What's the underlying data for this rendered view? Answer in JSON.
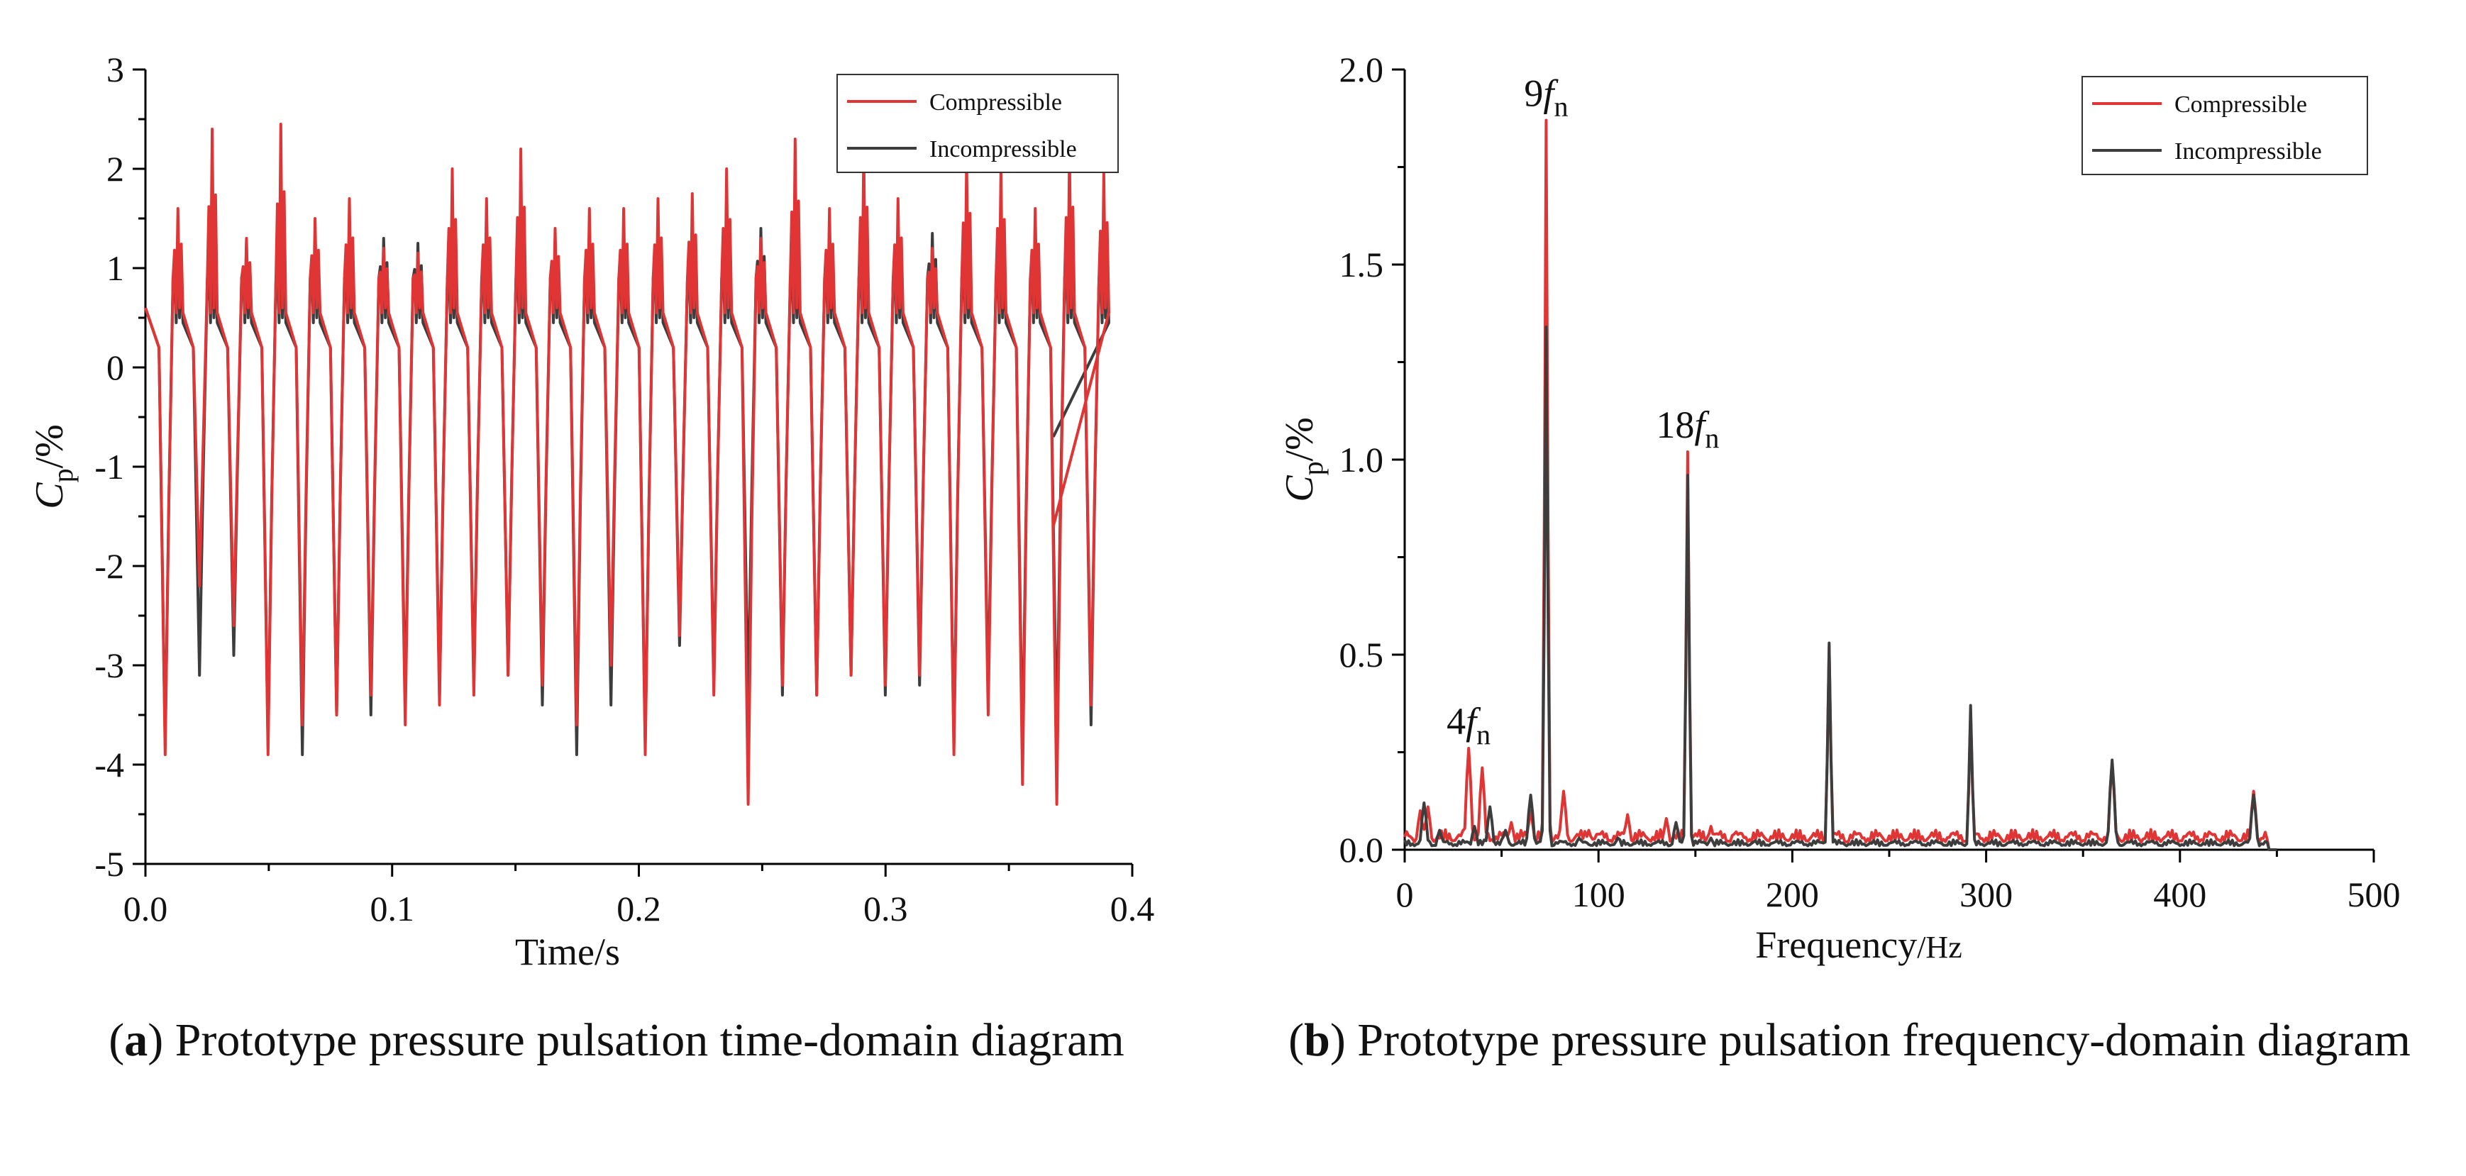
{
  "colors": {
    "compressible": "#e03535",
    "incompressible": "#3d3d3d",
    "axis": "#000000"
  },
  "captions": [
    {
      "letter": "a",
      "text": " Prototype pressure pulsation time-domain diagram"
    },
    {
      "letter": "b",
      "text": " Prototype pressure pulsation frequency-domain diagram"
    }
  ],
  "chart_data": [
    {
      "type": "line",
      "panel": "a",
      "title": "",
      "xlabel": "Time/s",
      "ylabel_main": "C",
      "ylabel_sub": "p",
      "ylabel_unit": "/%",
      "xlim": [
        0,
        0.4
      ],
      "ylim": [
        -5,
        3
      ],
      "xticks": [
        0.0,
        0.1,
        0.2,
        0.3,
        0.4
      ],
      "xtick_labels": [
        "0.0",
        "0.1",
        "0.2",
        "0.3",
        "0.4"
      ],
      "yticks": [
        -5,
        -4,
        -3,
        -2,
        -1,
        0,
        1,
        2,
        3
      ],
      "ytick_labels": [
        "-5",
        "-4",
        "-3",
        "-2",
        "-1",
        "0",
        "1",
        "2",
        "3"
      ],
      "legend": {
        "location": "top-right",
        "entries": [
          "Compressible",
          "Incompressible"
        ]
      },
      "period_s": 0.0139,
      "t_end_s": 0.368,
      "series": [
        {
          "name": "Compressible",
          "troughs": [
            -3.9,
            -2.2,
            -2.6,
            -3.9,
            -3.6,
            -3.5,
            -3.3,
            -3.6,
            -3.4,
            -3.3,
            -3.1,
            -3.2,
            -3.6,
            -3.0,
            -3.9,
            -2.7,
            -3.3,
            -4.4,
            -3.2,
            -3.3,
            -3.1,
            -3.2,
            -3.1,
            -3.9,
            -3.5,
            -4.2,
            -4.4,
            -3.4
          ],
          "peaks": [
            1.6,
            2.4,
            1.3,
            2.45,
            1.5,
            1.7,
            1.2,
            1.15,
            2.0,
            1.7,
            2.2,
            1.4,
            1.6,
            1.6,
            1.7,
            1.75,
            2.0,
            1.3,
            2.3,
            1.6,
            2.2,
            1.7,
            1.2,
            2.1,
            2.0,
            1.6,
            2.2,
            1.95
          ]
        },
        {
          "name": "Incompressible",
          "troughs": [
            -3.8,
            -3.1,
            -2.9,
            -3.8,
            -3.9,
            -3.5,
            -3.5,
            -3.4,
            -3.3,
            -3.2,
            -3.1,
            -3.4,
            -3.9,
            -3.4,
            -3.8,
            -2.8,
            -3.2,
            -3.4,
            -3.3,
            -3.3,
            -3.1,
            -3.3,
            -3.2,
            -3.8,
            -3.3,
            -3.9,
            -3.8,
            -3.6
          ],
          "peaks": [
            1.25,
            1.3,
            1.25,
            1.35,
            1.3,
            1.2,
            1.3,
            1.25,
            1.2,
            1.3,
            1.25,
            1.3,
            1.25,
            1.3,
            1.35,
            1.3,
            1.35,
            1.4,
            1.3,
            1.35,
            1.4,
            1.3,
            1.35,
            1.3,
            1.4,
            1.35,
            1.4,
            1.25
          ]
        }
      ]
    },
    {
      "type": "line",
      "panel": "b",
      "title": "",
      "xlabel_main": "Frequency",
      "xlabel_unit": "/Hz",
      "ylabel_main": "C",
      "ylabel_sub": "p",
      "ylabel_unit": "/%",
      "xlim": [
        0,
        500
      ],
      "ylim": [
        0,
        2.0
      ],
      "xticks": [
        0,
        100,
        200,
        300,
        400,
        500
      ],
      "xtick_labels": [
        "0",
        "100",
        "200",
        "300",
        "400",
        "500"
      ],
      "yticks": [
        0,
        0.5,
        1.0,
        1.5,
        2.0
      ],
      "ytick_labels": [
        "0.0",
        "0.5",
        "1.0",
        "1.5",
        "2.0"
      ],
      "legend": {
        "location": "top-right",
        "entries": [
          "Compressible",
          "Incompressible"
        ]
      },
      "annotations": [
        {
          "num": "4",
          "f": "f",
          "sub": "n",
          "x": 33,
          "y": 0.26
        },
        {
          "num": "9",
          "f": "f",
          "sub": "n",
          "x": 73,
          "y": 1.87
        },
        {
          "num": "18",
          "f": "f",
          "sub": "n",
          "x": 146,
          "y": 1.02
        }
      ],
      "series": [
        {
          "name": "Compressible",
          "peaks": [
            [
              8,
              0.1
            ],
            [
              12,
              0.11
            ],
            [
              33,
              0.26
            ],
            [
              40,
              0.21
            ],
            [
              55,
              0.07
            ],
            [
              65,
              0.1
            ],
            [
              73,
              1.87
            ],
            [
              82,
              0.15
            ],
            [
              95,
              0.05
            ],
            [
              115,
              0.09
            ],
            [
              135,
              0.08
            ],
            [
              146,
              1.02
            ],
            [
              158,
              0.06
            ],
            [
              170,
              0.04
            ],
            [
              190,
              0.03
            ],
            [
              219,
              0.52
            ],
            [
              245,
              0.02
            ],
            [
              292,
              0.35
            ],
            [
              365,
              0.22
            ],
            [
              438,
              0.15
            ]
          ],
          "baseline": 0.02
        },
        {
          "name": "Incompressible",
          "peaks": [
            [
              10,
              0.12
            ],
            [
              18,
              0.05
            ],
            [
              36,
              0.06
            ],
            [
              44,
              0.11
            ],
            [
              52,
              0.05
            ],
            [
              65,
              0.14
            ],
            [
              73,
              1.34
            ],
            [
              90,
              0.03
            ],
            [
              110,
              0.03
            ],
            [
              140,
              0.07
            ],
            [
              146,
              0.96
            ],
            [
              158,
              0.03
            ],
            [
              180,
              0.02
            ],
            [
              219,
              0.53
            ],
            [
              250,
              0.01
            ],
            [
              292,
              0.37
            ],
            [
              365,
              0.23
            ],
            [
              438,
              0.14
            ]
          ],
          "baseline": 0.01
        }
      ]
    }
  ]
}
